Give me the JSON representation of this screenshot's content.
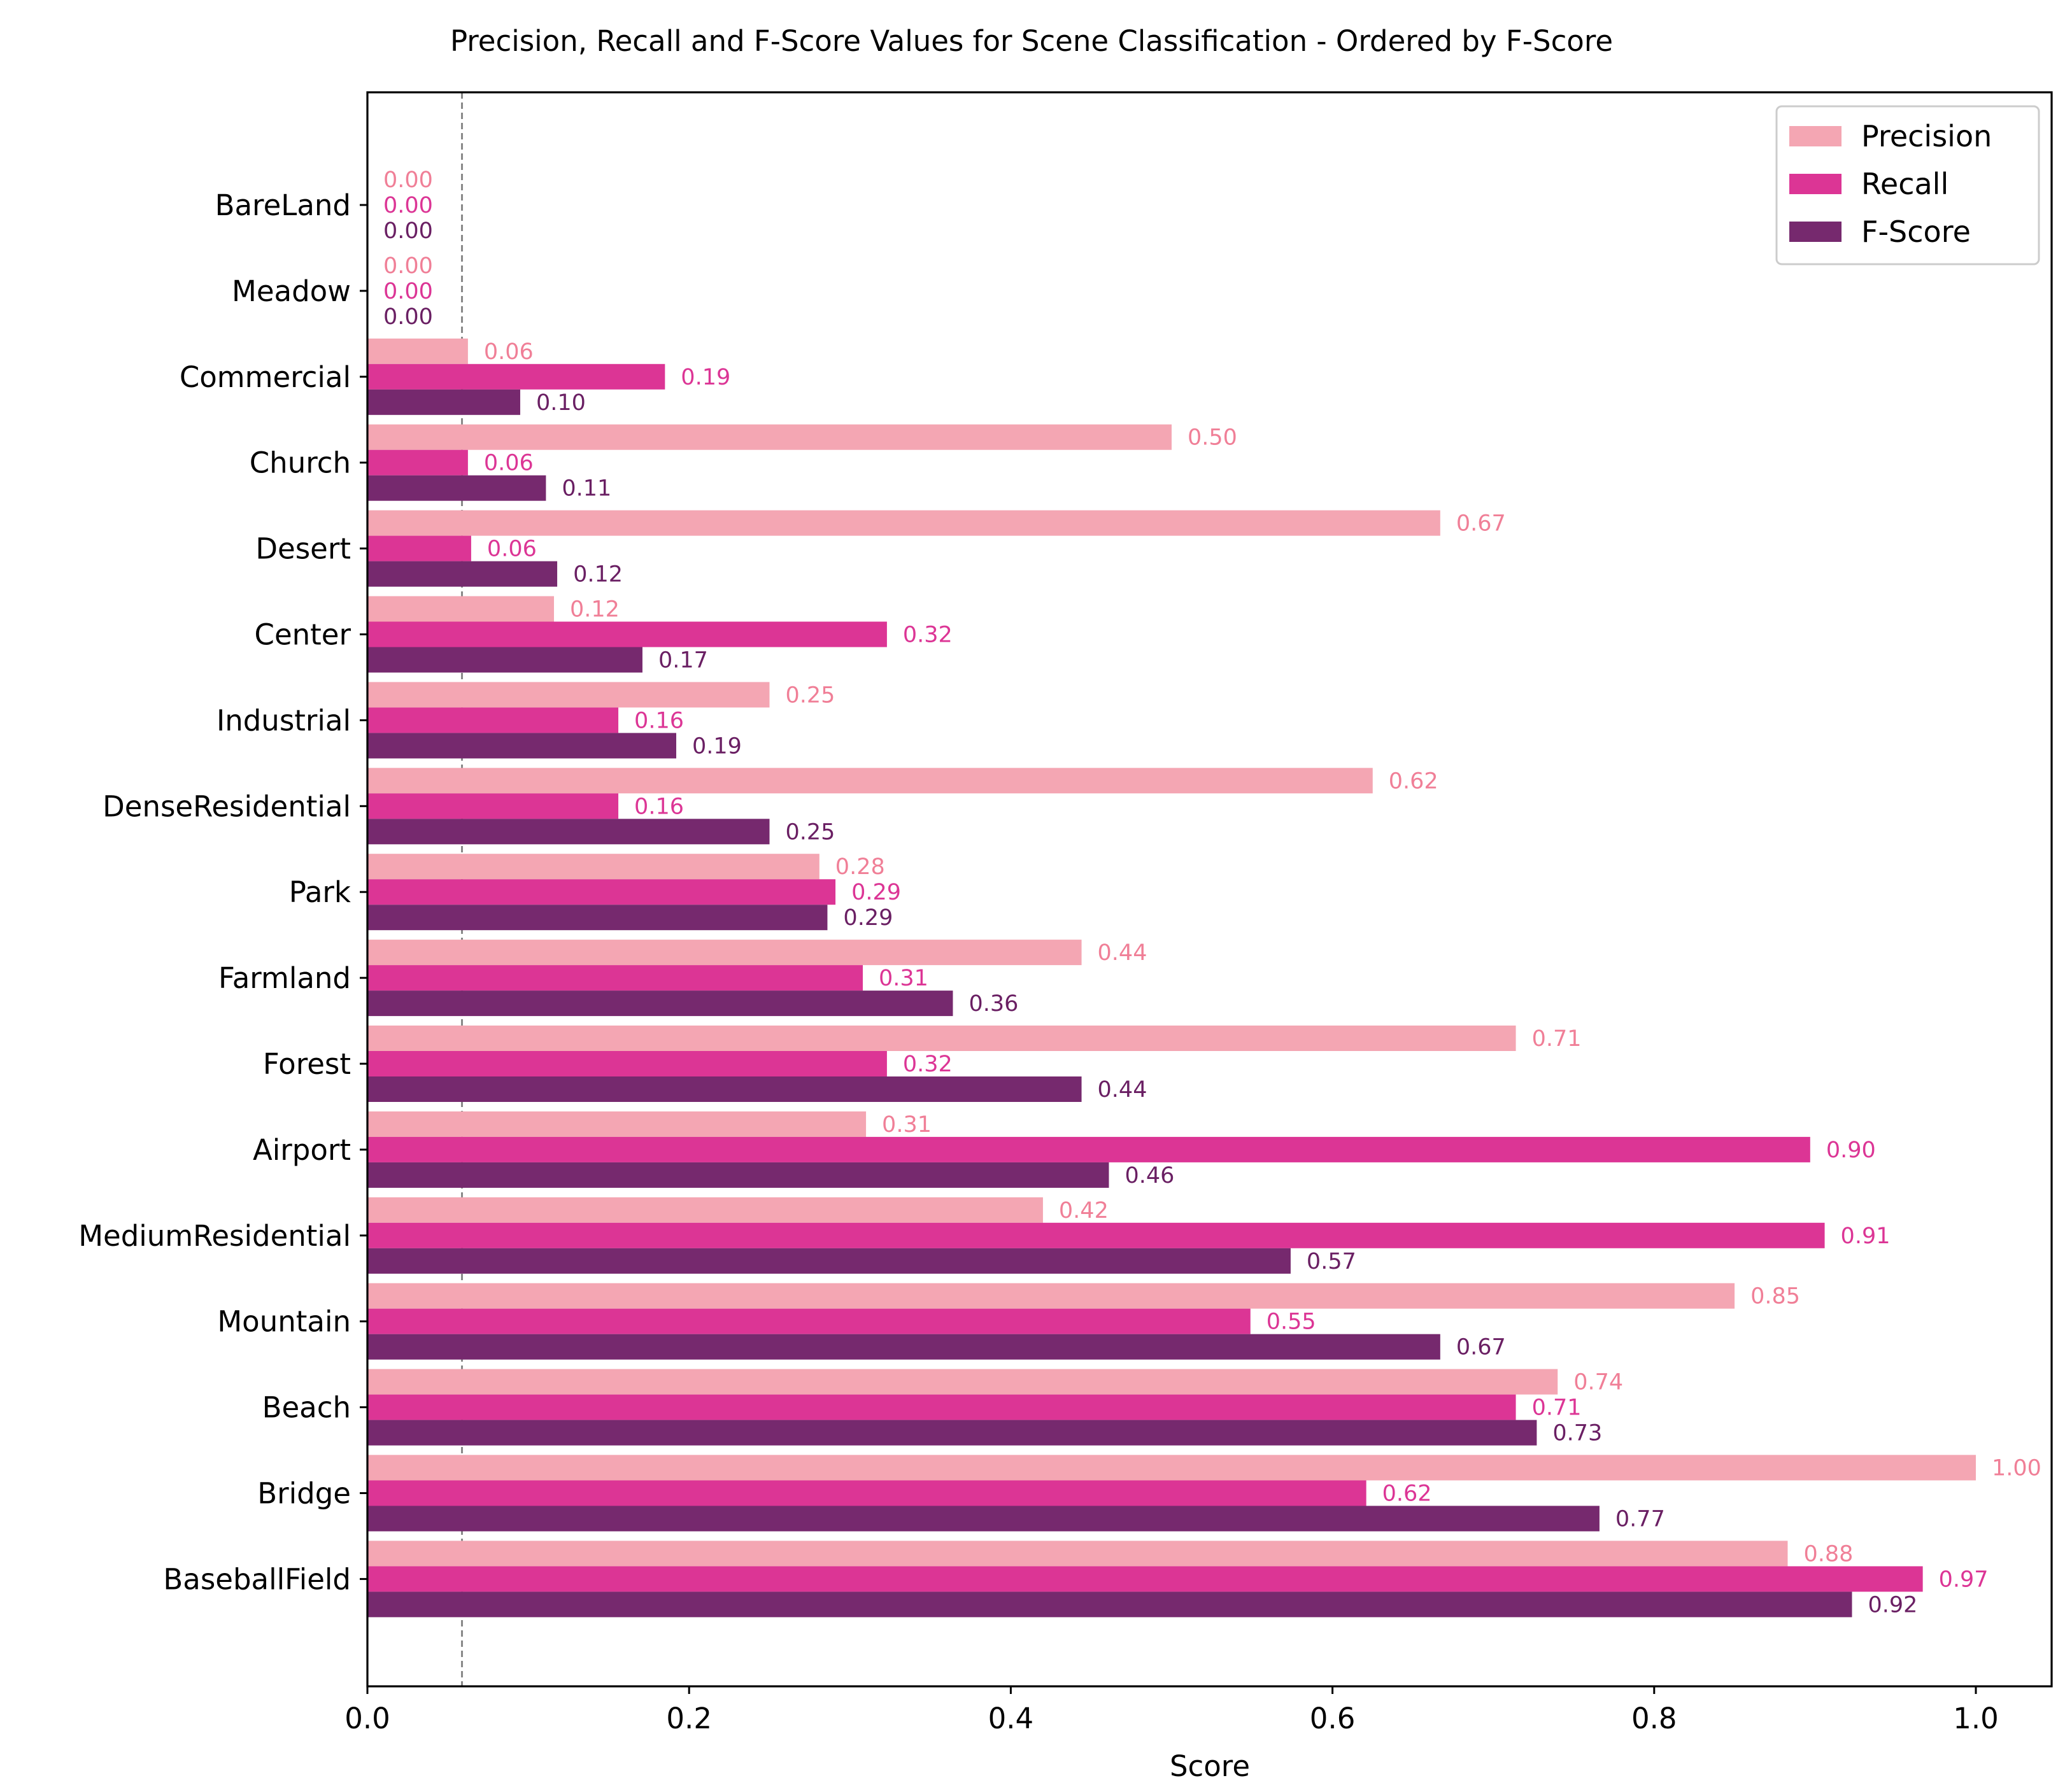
{
  "chart_data": {
    "type": "bar",
    "orientation": "horizontal",
    "title": "Precision, Recall and F-Score Values for Scene Classification - Ordered by F-Score",
    "xlabel": "Score",
    "ylabel": "",
    "xlim": [
      0,
      1.05
    ],
    "xticks": [
      0.0,
      0.2,
      0.4,
      0.6,
      0.8,
      1.0
    ],
    "xtick_labels": [
      "0.0",
      "0.2",
      "0.4",
      "0.6",
      "0.8",
      "1.0"
    ],
    "grid": false,
    "legend_position": "top-right",
    "reference_line": {
      "x": 0.0588,
      "style": "dashed",
      "color": "#888888"
    },
    "categories": [
      "BareLand",
      "Meadow",
      "Commercial",
      "Church",
      "Desert",
      "Center",
      "Industrial",
      "DenseResidential",
      "Park",
      "Farmland",
      "Forest",
      "Airport",
      "MediumResidential",
      "Mountain",
      "Beach",
      "Bridge",
      "BaseballField"
    ],
    "series": [
      {
        "name": "Precision",
        "color": "#f4a6b3",
        "values": [
          0.0,
          0.0,
          0.0625,
          0.5,
          0.667,
          0.116,
          0.25,
          0.625,
          0.281,
          0.444,
          0.714,
          0.31,
          0.42,
          0.85,
          0.74,
          1.0,
          0.883
        ],
        "labels": [
          "0.00",
          "0.00",
          "0.06",
          "0.50",
          "0.67",
          "0.12",
          "0.25",
          "0.62",
          "0.28",
          "0.44",
          "0.71",
          "0.31",
          "0.42",
          "0.85",
          "0.74",
          "1.00",
          "0.88"
        ]
      },
      {
        "name": "Recall",
        "color": "#dc3595",
        "values": [
          0.0,
          0.0,
          0.185,
          0.0625,
          0.0645,
          0.323,
          0.156,
          0.156,
          0.291,
          0.308,
          0.323,
          0.897,
          0.906,
          0.549,
          0.714,
          0.621,
          0.967
        ],
        "labels": [
          "0.00",
          "0.00",
          "0.19",
          "0.06",
          "0.06",
          "0.32",
          "0.16",
          "0.16",
          "0.29",
          "0.31",
          "0.32",
          "0.90",
          "0.91",
          "0.55",
          "0.71",
          "0.62",
          "0.97"
        ]
      },
      {
        "name": "F-Score",
        "color": "#76296e",
        "values": [
          0.0,
          0.0,
          0.095,
          0.111,
          0.118,
          0.171,
          0.192,
          0.25,
          0.286,
          0.364,
          0.444,
          0.461,
          0.574,
          0.667,
          0.727,
          0.766,
          0.923
        ],
        "labels": [
          "0.00",
          "0.00",
          "0.10",
          "0.11",
          "0.12",
          "0.17",
          "0.19",
          "0.25",
          "0.29",
          "0.36",
          "0.44",
          "0.46",
          "0.57",
          "0.67",
          "0.73",
          "0.77",
          "0.92"
        ]
      }
    ]
  }
}
